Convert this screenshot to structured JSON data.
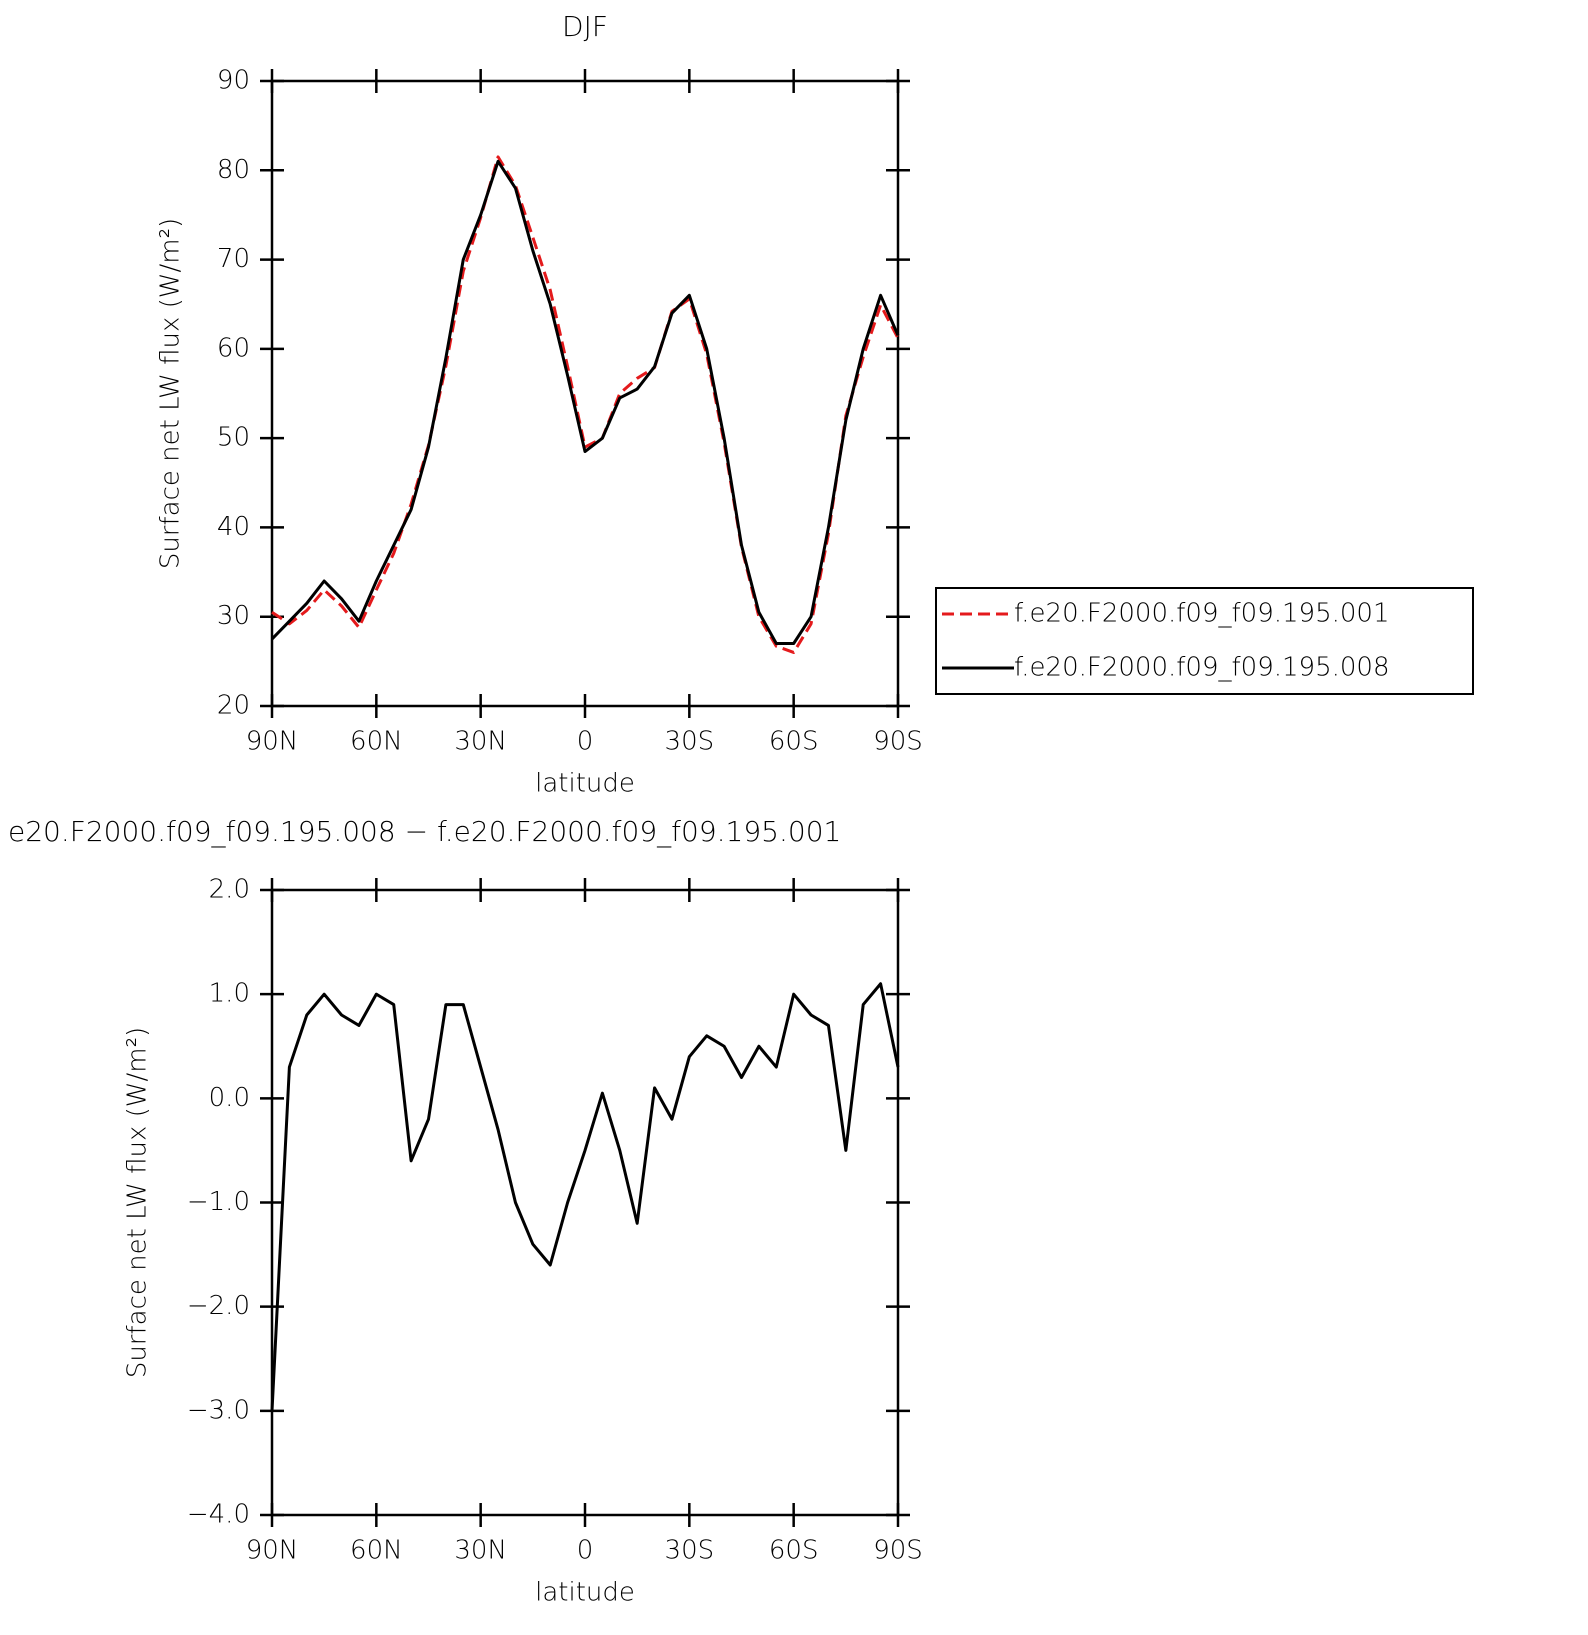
{
  "chart_data": [
    {
      "type": "line",
      "title": "DJF",
      "xlabel": "latitude",
      "ylabel": "Surface net LW flux (W/m²)",
      "x": [
        90,
        85,
        80,
        75,
        70,
        65,
        60,
        55,
        50,
        45,
        40,
        35,
        30,
        25,
        20,
        15,
        10,
        5,
        0,
        -5,
        -10,
        -15,
        -20,
        -25,
        -30,
        -35,
        -40,
        -45,
        -50,
        -55,
        -60,
        -65,
        -70,
        -75,
        -80,
        -85,
        -90
      ],
      "series": [
        {
          "name": "f.e20.F2000.f09_f09.195.001",
          "color": "#e41a1c",
          "dash": true,
          "values": [
            30.5,
            29.2,
            30.7,
            33,
            31.2,
            28.8,
            33,
            37.1,
            42.6,
            49.2,
            58.1,
            68.7,
            74.7,
            81.5,
            78.3,
            72.5,
            66.6,
            58,
            49,
            50,
            55,
            56.7,
            57.9,
            64.2,
            65.6,
            59.4,
            49.5,
            37.8,
            30,
            26.7,
            26,
            29.2,
            39.3,
            52.5,
            59.1,
            64.9,
            61.2
          ]
        },
        {
          "name": "f.e20.F2000.f09_f09.195.008",
          "color": "#000000",
          "dash": false,
          "values": [
            27.5,
            29.5,
            31.5,
            34,
            32,
            29.5,
            34,
            38,
            42,
            49,
            59,
            70,
            75,
            81,
            78,
            71,
            65,
            57,
            48.5,
            50,
            54.5,
            55.5,
            58,
            64,
            66,
            60,
            50,
            38,
            30.5,
            27,
            27,
            30,
            40,
            52,
            60,
            66,
            61.5
          ]
        }
      ],
      "xlim": [
        90,
        -90
      ],
      "xticks": [
        {
          "value": 90,
          "label": "90N"
        },
        {
          "value": 60,
          "label": "60N"
        },
        {
          "value": 30,
          "label": "30N"
        },
        0,
        {
          "value": -30,
          "label": "30S"
        },
        {
          "value": -60,
          "label": "60S"
        },
        {
          "value": -90,
          "label": "90S"
        }
      ],
      "ylim": [
        20,
        90
      ],
      "yticks": [
        20,
        30,
        40,
        50,
        60,
        70,
        80,
        90
      ],
      "legend": "right"
    },
    {
      "type": "line",
      "title": "e20.F2000.f09_f09.195.008 − f.e20.F2000.f09_f09.195.001",
      "xlabel": "latitude",
      "ylabel": "Surface net LW flux (W/m²)",
      "x": [
        90,
        85,
        80,
        75,
        70,
        65,
        60,
        55,
        50,
        45,
        40,
        35,
        30,
        25,
        20,
        15,
        10,
        5,
        0,
        -5,
        -10,
        -15,
        -20,
        -25,
        -30,
        -35,
        -40,
        -45,
        -50,
        -55,
        -60,
        -65,
        -70,
        -75,
        -80,
        -85,
        -90
      ],
      "values": [
        -3.0,
        0.3,
        0.8,
        1.0,
        0.8,
        0.7,
        1.0,
        0.9,
        -0.6,
        -0.2,
        0.9,
        0.9,
        0.3,
        -0.3,
        -1.0,
        -1.4,
        -1.6,
        -1.0,
        -0.5,
        0.05,
        -0.5,
        -1.2,
        0.1,
        -0.2,
        0.4,
        0.6,
        0.5,
        0.2,
        0.5,
        0.3,
        1.0,
        0.8,
        0.7,
        -0.5,
        0.9,
        1.1,
        0.3
      ],
      "color": "#000000",
      "xlim": [
        90,
        -90
      ],
      "xticks": [
        {
          "value": 90,
          "label": "90N"
        },
        {
          "value": 60,
          "label": "60N"
        },
        {
          "value": 30,
          "label": "30N"
        },
        0,
        {
          "value": -30,
          "label": "30S"
        },
        {
          "value": -60,
          "label": "60S"
        },
        {
          "value": -90,
          "label": "90S"
        }
      ],
      "ylim": [
        -4,
        2
      ],
      "yticks": [
        {
          "value": -4,
          "label": "−4.0"
        },
        {
          "value": -3,
          "label": "−3.0"
        },
        {
          "value": -2,
          "label": "−2.0"
        },
        {
          "value": -1,
          "label": "−1.0"
        },
        {
          "value": 0,
          "label": "0.0"
        },
        {
          "value": 1,
          "label": "1.0"
        },
        {
          "value": 2,
          "label": "2.0"
        }
      ]
    }
  ]
}
